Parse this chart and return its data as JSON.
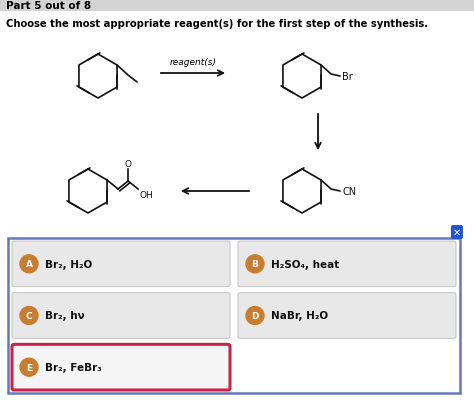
{
  "title": "Part 5 out of 8",
  "subtitle": "Choose the most appropriate reagent(s) for the first step of the synthesis.",
  "bg_color": "#ffffff",
  "header_bg": "#d4d4d4",
  "title_fontsize": 7.5,
  "subtitle_fontsize": 7.2,
  "options": [
    {
      "label": "A",
      "text": "Br₂, H₂O",
      "selected": false,
      "row": 0,
      "col": 0
    },
    {
      "label": "B",
      "text": "H₂SO₄, heat",
      "selected": false,
      "row": 0,
      "col": 1
    },
    {
      "label": "C",
      "text": "Br₂, hν",
      "selected": false,
      "row": 1,
      "col": 0
    },
    {
      "label": "D",
      "text": "NaBr, H₂O",
      "selected": false,
      "row": 1,
      "col": 1
    },
    {
      "label": "E",
      "text": "Br₂, FeBr₃",
      "selected": true,
      "row": 2,
      "col": 0
    }
  ],
  "circle_color": "#c87e30",
  "selected_border": "#cc2244",
  "unselected_border": "#bbbbbb",
  "box_bg_normal": "#e8e8e8",
  "box_bg_selected": "#f5f5f5",
  "panel_border": "#6677bb",
  "close_btn_bg": "#2255cc",
  "reagent_label": "reagent(s)",
  "lw": 1.2,
  "mol_color": "#111111",
  "arrow_color": "#111111"
}
